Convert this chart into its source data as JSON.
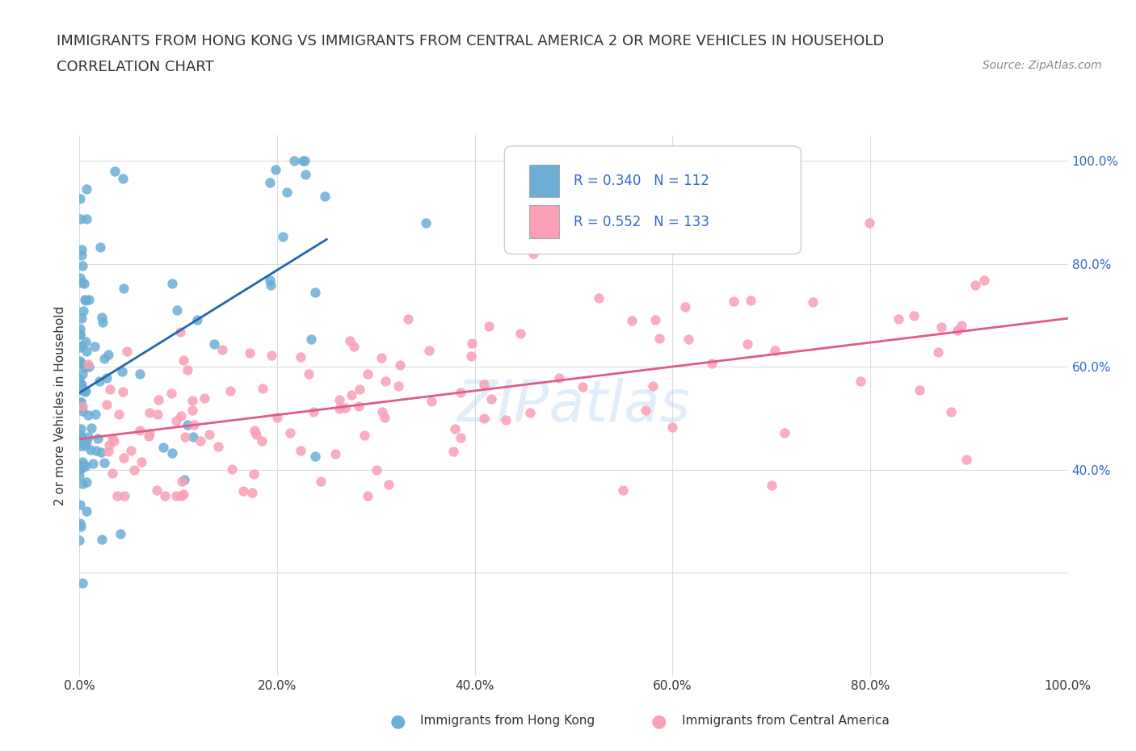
{
  "title": "IMMIGRANTS FROM HONG KONG VS IMMIGRANTS FROM CENTRAL AMERICA 2 OR MORE VEHICLES IN HOUSEHOLD",
  "subtitle": "CORRELATION CHART",
  "source": "Source: ZipAtlas.com",
  "ylabel": "2 or more Vehicles in Household",
  "legend_label_hk": "Immigrants from Hong Kong",
  "legend_label_ca": "Immigrants from Central America",
  "r_hk": 0.34,
  "n_hk": 112,
  "r_ca": 0.552,
  "n_ca": 133,
  "color_hk": "#6baed6",
  "color_ca": "#fa9fb5",
  "color_trend_hk": "#2166ac",
  "color_trend_ca": "#e05a8a",
  "color_text_blue": "#3366cc",
  "watermark": "ZIPatlas",
  "bg_color": "#ffffff",
  "xmin": 0.0,
  "xmax": 1.0,
  "ymin": 0.0,
  "ymax": 1.05,
  "seed_hk": 42,
  "seed_ca": 123
}
